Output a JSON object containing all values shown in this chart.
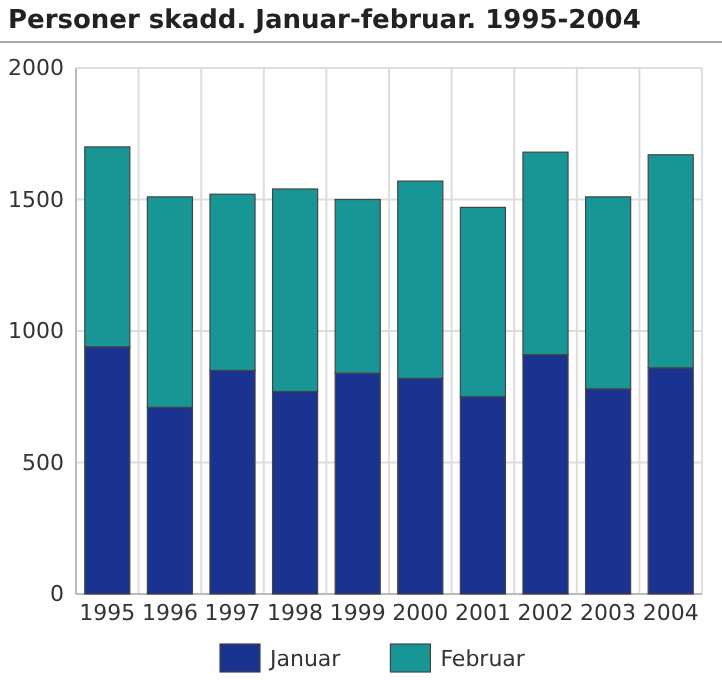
{
  "chart_data": {
    "type": "bar",
    "title": "Personer skadd. Januar-februar. 1995-2004",
    "categories": [
      "1995",
      "1996",
      "1997",
      "1998",
      "1999",
      "2000",
      "2001",
      "2002",
      "2003",
      "2004"
    ],
    "series": [
      {
        "name": "Januar",
        "color": "#1a3390",
        "values": [
          940,
          710,
          850,
          770,
          840,
          820,
          750,
          910,
          780,
          860
        ]
      },
      {
        "name": "Februar",
        "color": "#189696",
        "values": [
          760,
          800,
          670,
          770,
          660,
          750,
          720,
          770,
          730,
          810
        ]
      }
    ],
    "stacked": true,
    "ylim": [
      0,
      2000
    ],
    "yticks": [
      0,
      500,
      1000,
      1500,
      2000
    ],
    "grid": true,
    "legend": "bottom"
  }
}
